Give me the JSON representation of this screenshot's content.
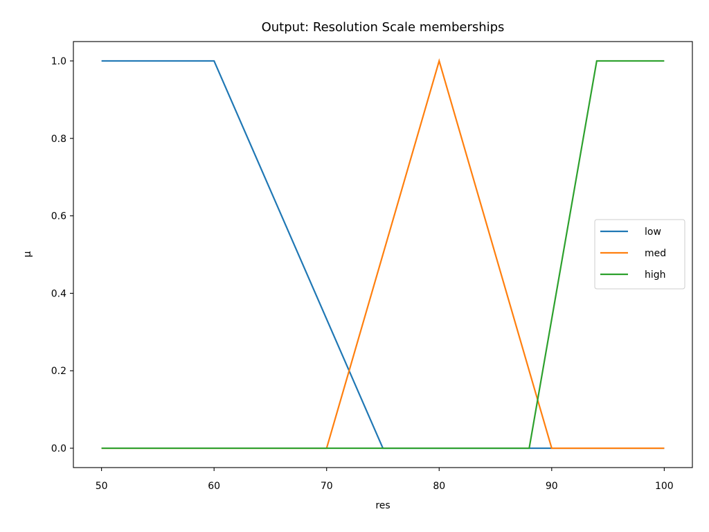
{
  "chart_data": {
    "type": "line",
    "title": "Output: Resolution Scale memberships",
    "xlabel": "res",
    "ylabel": "μ",
    "xlim": [
      47.5,
      102.5
    ],
    "ylim": [
      -0.05,
      1.05
    ],
    "xticks": [
      50,
      60,
      70,
      80,
      90,
      100
    ],
    "xtick_labels": [
      "50",
      "60",
      "70",
      "80",
      "90",
      "100"
    ],
    "yticks": [
      0.0,
      0.2,
      0.4,
      0.6,
      0.8,
      1.0
    ],
    "ytick_labels": [
      "0.0",
      "0.2",
      "0.4",
      "0.6",
      "0.8",
      "1.0"
    ],
    "grid": false,
    "legend_position": "center-right",
    "series": [
      {
        "name": "low",
        "color": "#1f77b4",
        "x": [
          50,
          60,
          75,
          100
        ],
        "y": [
          1,
          1,
          0,
          0
        ]
      },
      {
        "name": "med",
        "color": "#ff7f0e",
        "x": [
          50,
          70,
          80,
          90,
          100
        ],
        "y": [
          0,
          0,
          1,
          0,
          0
        ]
      },
      {
        "name": "high",
        "color": "#2ca02c",
        "x": [
          50,
          88,
          94,
          100
        ],
        "y": [
          0,
          0,
          1,
          1
        ]
      }
    ]
  }
}
